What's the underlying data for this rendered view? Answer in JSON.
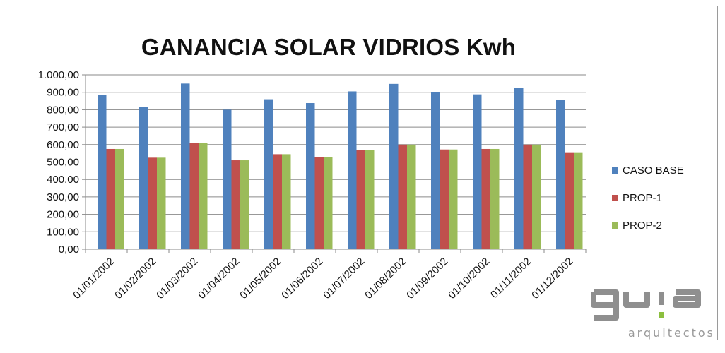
{
  "chart_data": {
    "type": "bar",
    "title": "GANANCIA SOLAR VIDRIOS Kwh",
    "xlabel": "",
    "ylabel": "",
    "ylim": [
      0,
      1000
    ],
    "ytick_step": 100,
    "yticks": [
      "0,00",
      "100,00",
      "200,00",
      "300,00",
      "400,00",
      "500,00",
      "600,00",
      "700,00",
      "800,00",
      "900,00",
      "1.000,00"
    ],
    "grid": true,
    "legend_position": "right",
    "categories": [
      "01/01/2002",
      "01/02/2002",
      "01/03/2002",
      "01/04/2002",
      "01/05/2002",
      "01/06/2002",
      "01/07/2002",
      "01/08/2002",
      "01/09/2002",
      "01/10/2002",
      "01/11/2002",
      "01/12/2002"
    ],
    "series": [
      {
        "name": "CASO BASE",
        "color": "#4f81bd",
        "values": [
          885,
          815,
          950,
          800,
          860,
          838,
          905,
          948,
          900,
          888,
          925,
          855
        ]
      },
      {
        "name": "PROP-1",
        "color": "#c0504d",
        "values": [
          575,
          525,
          608,
          510,
          545,
          530,
          568,
          600,
          572,
          575,
          600,
          552
        ]
      },
      {
        "name": "PROP-2",
        "color": "#9bbb59",
        "values": [
          575,
          525,
          608,
          510,
          545,
          530,
          568,
          600,
          572,
          575,
          600,
          552
        ]
      }
    ]
  },
  "watermark": {
    "logo": "guia",
    "tagline": "arquitectos"
  }
}
